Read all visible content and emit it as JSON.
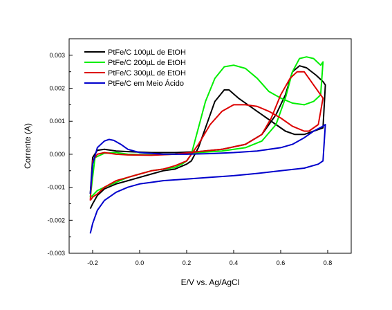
{
  "chart_data": {
    "type": "line",
    "xlabel": "E/V vs. Ag/AgCl",
    "ylabel": "Corrente (A)",
    "xlim": [
      -0.3,
      0.9
    ],
    "ylim": [
      -0.003,
      0.0035
    ],
    "x_ticks": [
      {
        "value": -0.2,
        "label": "-0.2"
      },
      {
        "value": 0.0,
        "label": "0.0"
      },
      {
        "value": 0.2,
        "label": "0.2"
      },
      {
        "value": 0.4,
        "label": "0.4"
      },
      {
        "value": 0.6,
        "label": "0.6"
      },
      {
        "value": 0.8,
        "label": "0.8"
      }
    ],
    "y_ticks": [
      {
        "value": -0.003,
        "label": "-0.003"
      },
      {
        "value": -0.002,
        "label": "-0.002"
      },
      {
        "value": -0.001,
        "label": "-0.001"
      },
      {
        "value": 0.0,
        "label": "0.000"
      },
      {
        "value": 0.001,
        "label": "0.001"
      },
      {
        "value": 0.002,
        "label": "0.002"
      },
      {
        "value": 0.003,
        "label": "0.003"
      }
    ],
    "grid": false,
    "legend_position": "top-left",
    "series": [
      {
        "name": "PtFe/C 100µL de EtOH",
        "color": "#000000",
        "points": [
          [
            -0.21,
            -0.00165
          ],
          [
            -0.2,
            -0.0015
          ],
          [
            -0.18,
            -0.00125
          ],
          [
            -0.15,
            -0.00105
          ],
          [
            -0.1,
            -0.0009
          ],
          [
            -0.05,
            -0.0008
          ],
          [
            0.0,
            -0.0007
          ],
          [
            0.05,
            -0.0006
          ],
          [
            0.1,
            -0.0005
          ],
          [
            0.15,
            -0.00045
          ],
          [
            0.2,
            -0.0003
          ],
          [
            0.22,
            -0.0002
          ],
          [
            0.25,
            0.0002
          ],
          [
            0.28,
            0.0008
          ],
          [
            0.32,
            0.0016
          ],
          [
            0.36,
            0.00195
          ],
          [
            0.38,
            0.00195
          ],
          [
            0.42,
            0.0017
          ],
          [
            0.5,
            0.0013
          ],
          [
            0.58,
            0.0009
          ],
          [
            0.62,
            0.0007
          ],
          [
            0.66,
            0.0006
          ],
          [
            0.7,
            0.0006
          ],
          [
            0.74,
            0.0007
          ],
          [
            0.78,
            0.0008
          ],
          [
            0.79,
            0.0021
          ],
          [
            0.78,
            0.0022
          ],
          [
            0.75,
            0.0024
          ],
          [
            0.71,
            0.00262
          ],
          [
            0.68,
            0.00268
          ],
          [
            0.65,
            0.0025
          ],
          [
            0.62,
            0.0018
          ],
          [
            0.58,
            0.0012
          ],
          [
            0.52,
            0.0006
          ],
          [
            0.45,
            0.0003
          ],
          [
            0.35,
            0.00015
          ],
          [
            0.25,
            8e-05
          ],
          [
            0.15,
            5e-05
          ],
          [
            0.05,
            5e-05
          ],
          [
            -0.05,
            8e-05
          ],
          [
            -0.1,
            0.0001
          ],
          [
            -0.15,
            0.00015
          ],
          [
            -0.18,
            0.00012
          ],
          [
            -0.2,
            -0.0001
          ],
          [
            -0.21,
            -0.0012
          ]
        ]
      },
      {
        "name": "PtFe/C 200µL de EtOH",
        "color": "#00ee00",
        "points": [
          [
            -0.21,
            -0.0013
          ],
          [
            -0.2,
            -0.00125
          ],
          [
            -0.18,
            -0.0011
          ],
          [
            -0.15,
            -0.001
          ],
          [
            -0.1,
            -0.00085
          ],
          [
            -0.05,
            -0.0007
          ],
          [
            0.0,
            -0.0006
          ],
          [
            0.05,
            -0.0005
          ],
          [
            0.1,
            -0.00045
          ],
          [
            0.15,
            -0.0004
          ],
          [
            0.18,
            -0.0003
          ],
          [
            0.2,
            -0.0002
          ],
          [
            0.22,
            0.0
          ],
          [
            0.25,
            0.0008
          ],
          [
            0.28,
            0.0016
          ],
          [
            0.32,
            0.0023
          ],
          [
            0.36,
            0.00265
          ],
          [
            0.4,
            0.0027
          ],
          [
            0.45,
            0.0026
          ],
          [
            0.5,
            0.0023
          ],
          [
            0.55,
            0.0019
          ],
          [
            0.6,
            0.0017
          ],
          [
            0.65,
            0.00155
          ],
          [
            0.7,
            0.0015
          ],
          [
            0.74,
            0.0016
          ],
          [
            0.77,
            0.0018
          ],
          [
            0.78,
            0.0028
          ],
          [
            0.77,
            0.0027
          ],
          [
            0.74,
            0.0029
          ],
          [
            0.71,
            0.00295
          ],
          [
            0.68,
            0.0029
          ],
          [
            0.65,
            0.0025
          ],
          [
            0.62,
            0.0017
          ],
          [
            0.58,
            0.0009
          ],
          [
            0.52,
            0.0004
          ],
          [
            0.45,
            0.0002
          ],
          [
            0.35,
            0.0001
          ],
          [
            0.25,
            5e-05
          ],
          [
            0.15,
            0.0
          ],
          [
            0.05,
            -2e-05
          ],
          [
            -0.05,
            0.0
          ],
          [
            -0.1,
            5e-05
          ],
          [
            -0.15,
            3e-05
          ],
          [
            -0.19,
            -0.0001
          ],
          [
            -0.21,
            -0.0013
          ]
        ]
      },
      {
        "name": "PtFe/C 300µL de EtOH",
        "color": "#dd0000",
        "points": [
          [
            -0.21,
            -0.0014
          ],
          [
            -0.2,
            -0.0013
          ],
          [
            -0.18,
            -0.0012
          ],
          [
            -0.15,
            -0.001
          ],
          [
            -0.1,
            -0.0008
          ],
          [
            -0.05,
            -0.0007
          ],
          [
            0.0,
            -0.0006
          ],
          [
            0.05,
            -0.0005
          ],
          [
            0.1,
            -0.00045
          ],
          [
            0.15,
            -0.00035
          ],
          [
            0.2,
            -0.0002
          ],
          [
            0.25,
            0.0003
          ],
          [
            0.3,
            0.0009
          ],
          [
            0.35,
            0.0013
          ],
          [
            0.4,
            0.0015
          ],
          [
            0.45,
            0.0015
          ],
          [
            0.5,
            0.00145
          ],
          [
            0.55,
            0.0013
          ],
          [
            0.6,
            0.0011
          ],
          [
            0.65,
            0.00085
          ],
          [
            0.7,
            0.0007
          ],
          [
            0.72,
            0.0007
          ],
          [
            0.76,
            0.0009
          ],
          [
            0.78,
            0.0017
          ],
          [
            0.76,
            0.0019
          ],
          [
            0.74,
            0.0021
          ],
          [
            0.72,
            0.0023
          ],
          [
            0.7,
            0.0025
          ],
          [
            0.67,
            0.0025
          ],
          [
            0.64,
            0.0023
          ],
          [
            0.6,
            0.0018
          ],
          [
            0.56,
            0.0011
          ],
          [
            0.52,
            0.0006
          ],
          [
            0.45,
            0.0003
          ],
          [
            0.35,
            0.00015
          ],
          [
            0.25,
            8e-05
          ],
          [
            0.15,
            0.0
          ],
          [
            0.05,
            -3e-05
          ],
          [
            -0.05,
            -2e-05
          ],
          [
            -0.1,
            0.0
          ],
          [
            -0.15,
            5e-05
          ],
          [
            -0.18,
            0.0
          ],
          [
            -0.2,
            -0.0002
          ],
          [
            -0.21,
            -0.0014
          ]
        ]
      },
      {
        "name": "PtFe/C em Meio Ácido",
        "color": "#0000cc",
        "points": [
          [
            -0.21,
            -0.0024
          ],
          [
            -0.2,
            -0.0021
          ],
          [
            -0.18,
            -0.0017
          ],
          [
            -0.15,
            -0.0014
          ],
          [
            -0.1,
            -0.00115
          ],
          [
            -0.05,
            -0.001
          ],
          [
            0.0,
            -0.0009
          ],
          [
            0.05,
            -0.00085
          ],
          [
            0.1,
            -0.0008
          ],
          [
            0.2,
            -0.00075
          ],
          [
            0.3,
            -0.0007
          ],
          [
            0.4,
            -0.00065
          ],
          [
            0.5,
            -0.00058
          ],
          [
            0.6,
            -0.0005
          ],
          [
            0.7,
            -0.00042
          ],
          [
            0.76,
            -0.0003
          ],
          [
            0.78,
            -0.0002
          ],
          [
            0.79,
            0.0009
          ],
          [
            0.78,
            0.00085
          ],
          [
            0.74,
            0.0007
          ],
          [
            0.7,
            0.0005
          ],
          [
            0.65,
            0.0003
          ],
          [
            0.6,
            0.0002
          ],
          [
            0.5,
            0.0001
          ],
          [
            0.4,
            5e-05
          ],
          [
            0.3,
            2e-05
          ],
          [
            0.2,
            0.0
          ],
          [
            0.1,
            0.0
          ],
          [
            0.0,
            5e-05
          ],
          [
            -0.05,
            0.00015
          ],
          [
            -0.08,
            0.0003
          ],
          [
            -0.11,
            0.00042
          ],
          [
            -0.13,
            0.00045
          ],
          [
            -0.15,
            0.0004
          ],
          [
            -0.18,
            0.0002
          ],
          [
            -0.2,
            -0.0003
          ],
          [
            -0.21,
            -0.0012
          ]
        ]
      }
    ]
  }
}
